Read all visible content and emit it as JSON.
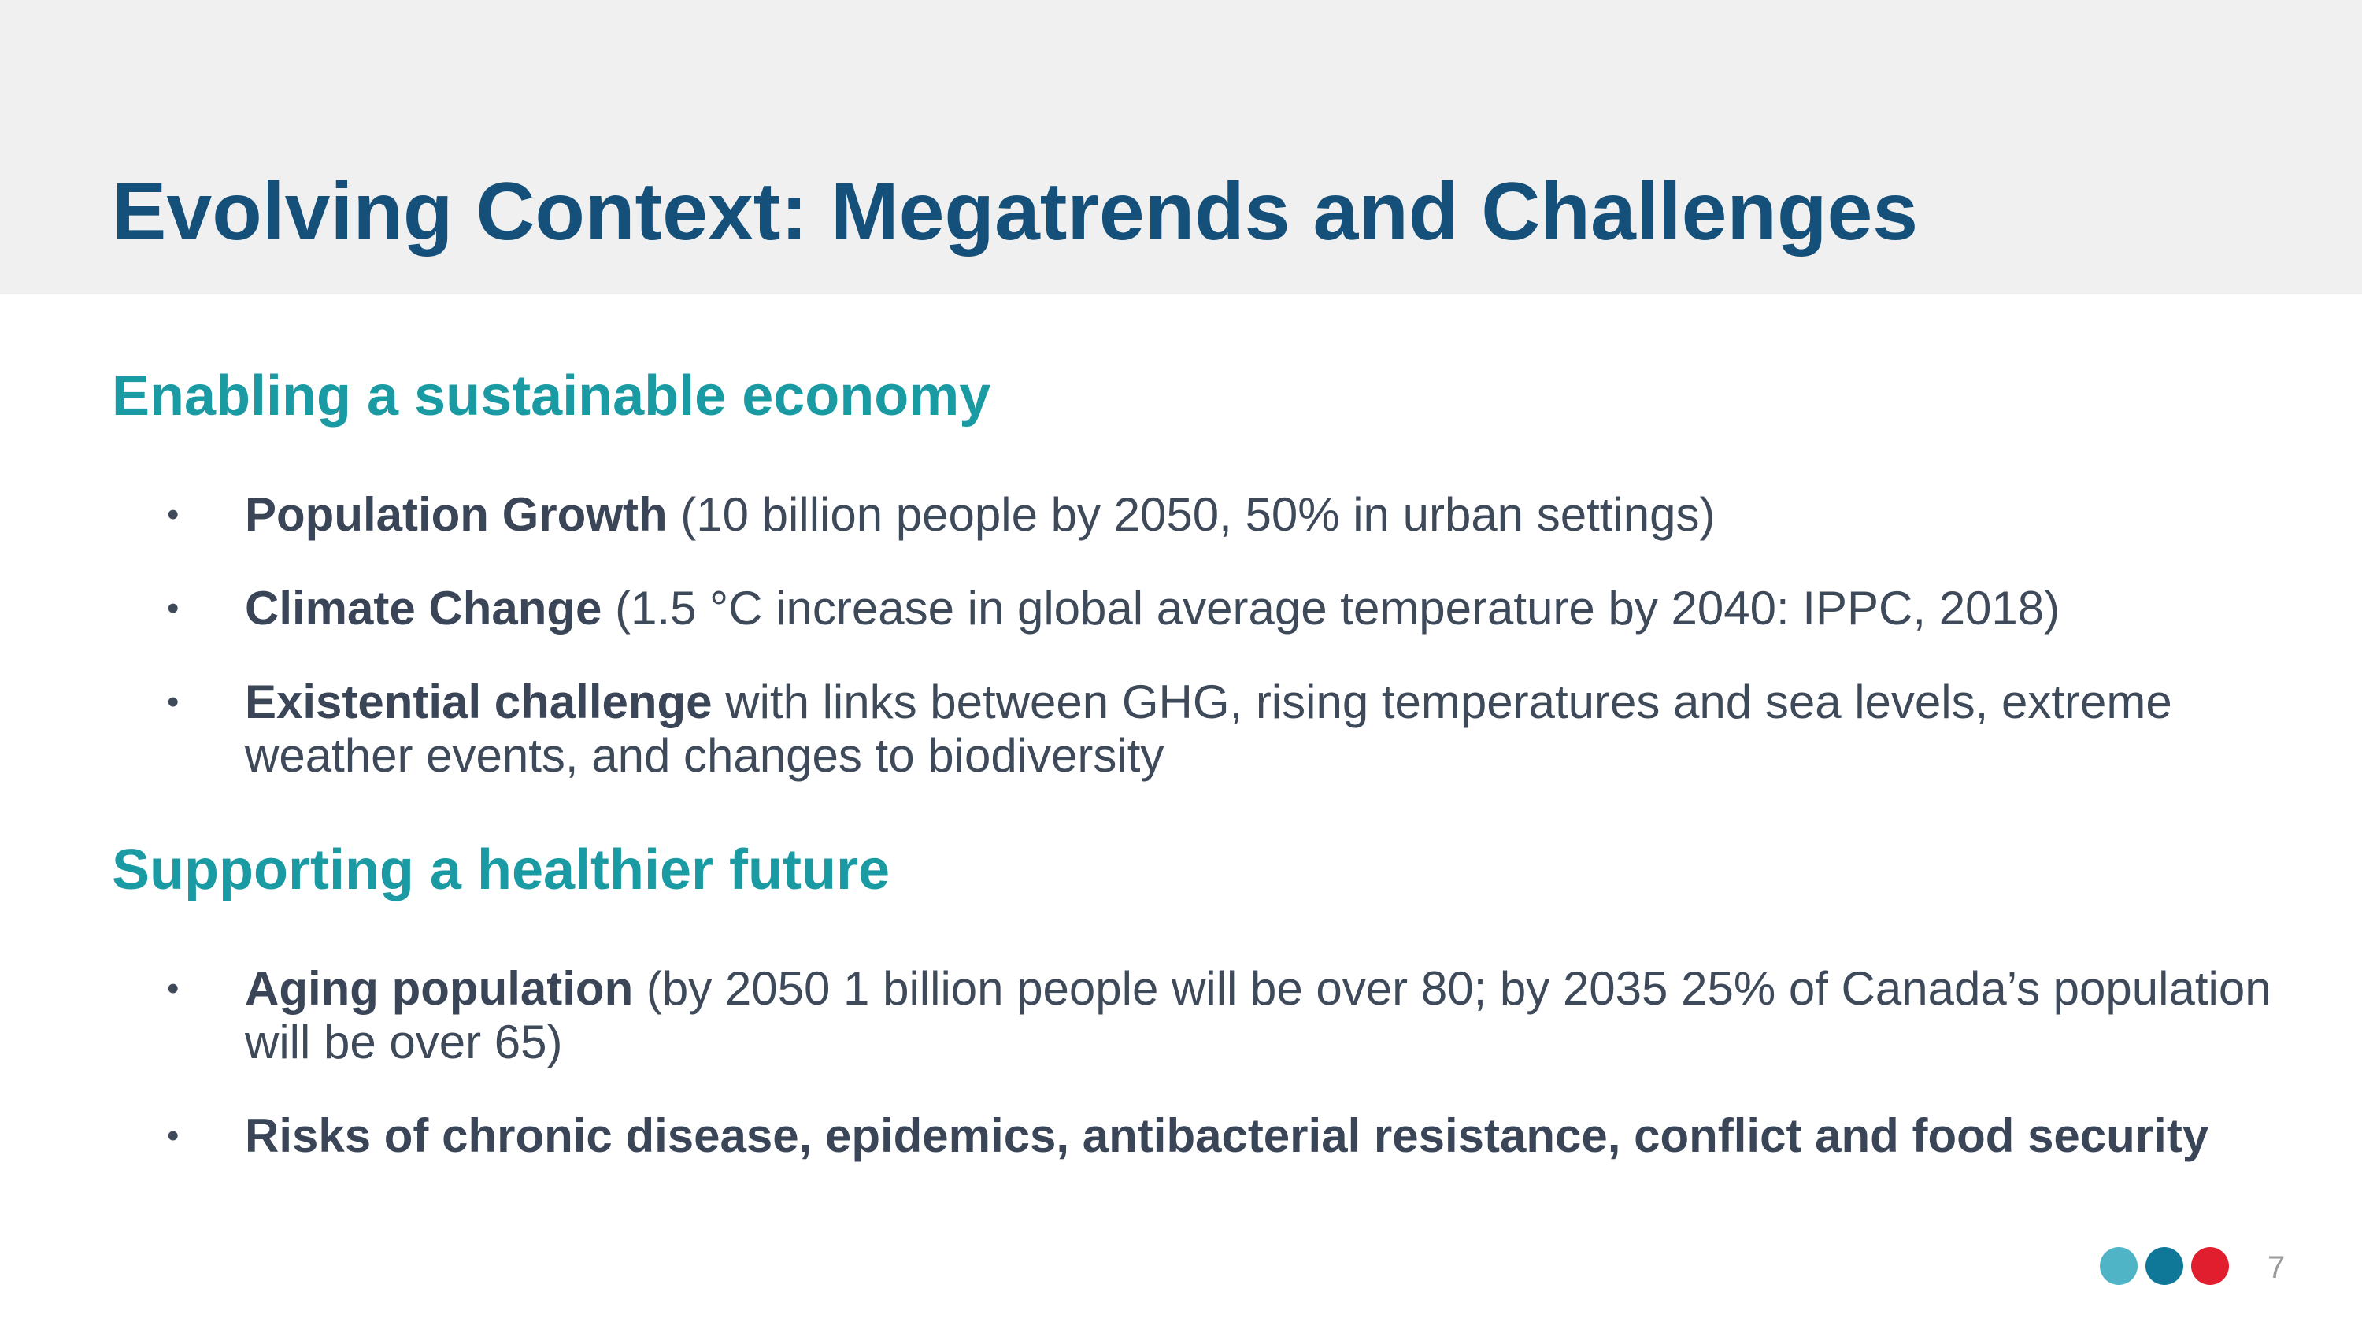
{
  "slide": {
    "title": "Evolving Context: Megatrends and Challenges",
    "page_number": "7"
  },
  "sections": [
    {
      "heading": "Enabling a sustainable economy",
      "bullets": [
        {
          "strong": "Population Growth",
          "rest": " (10 billion people by 2050, 50% in urban settings)"
        },
        {
          "strong": "Climate Change",
          "rest": " (1.5 °C increase in global average temperature by 2040: IPPC, 2018)"
        },
        {
          "strong": "Existential challenge",
          "rest": " with links between GHG, rising temperatures and sea levels, extreme weather events, and changes to biodiversity"
        }
      ]
    },
    {
      "heading": "Supporting a healthier future",
      "bullets": [
        {
          "strong": "Aging population",
          "rest": " (by 2050 1 billion people will be over 80; by 2035 25% of Canada’s population will be over 65)"
        },
        {
          "strong": "Risks of chronic disease, epidemics, antibacterial resistance, conflict and food security",
          "rest": ""
        }
      ]
    }
  ],
  "bullet_glyph": "•",
  "colors": {
    "title": "#14507a",
    "heading": "#1a9aa3",
    "body": "#3e4a5a",
    "header_band": "#f0f0f0",
    "footer_dots": [
      "#4fb4c6",
      "#0f7898",
      "#e11e2d"
    ]
  }
}
